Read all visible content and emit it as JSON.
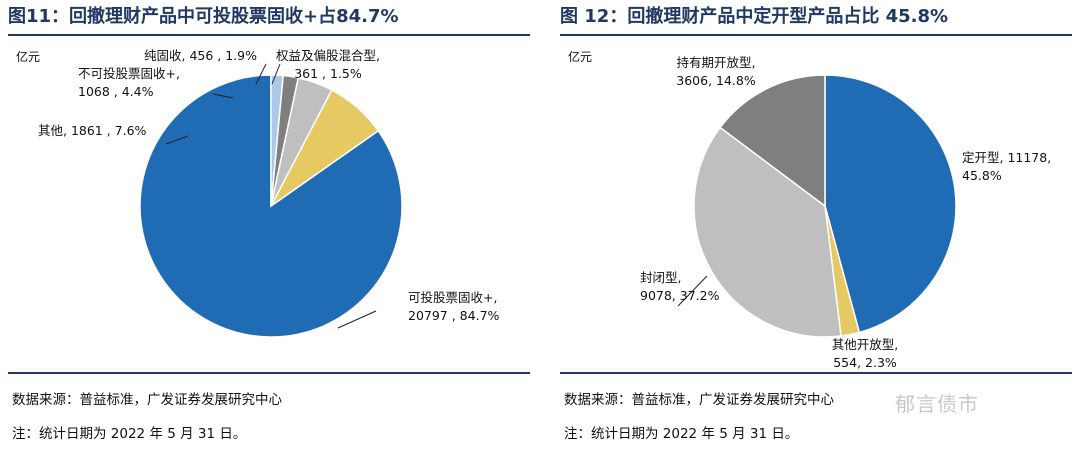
{
  "charts": [
    {
      "figure_title": "图11：回撤理财产品中可投股票固收+占84.7%",
      "unit": "亿元",
      "source": "数据来源：普益标准，广发证券发展研究中心",
      "note": "注：统计日期为 2022 年 5 月 31 日。"
    },
    {
      "figure_title": "图 12：回撤理财产品中定开型产品占比 45.8%",
      "unit": "亿元",
      "source": "数据来源：普益标准，广发证券发展研究中心",
      "note": "注：统计日期为 2022 年 5 月 31 日。"
    }
  ],
  "watermark": "郁言债市",
  "chart_data": [
    {
      "type": "pie",
      "title": "回撤理财产品中可投股票固收+占84.7%",
      "unit": "亿元",
      "slices": [
        {
          "name": "可投股票固收+",
          "value": 20797,
          "pct": "84.7%",
          "line1": "可投股票固收+,",
          "line2": "20797 , 84.7%",
          "color": "#1f6cb5"
        },
        {
          "name": "其他",
          "value": 1861,
          "pct": "7.6%",
          "line1": "其他, 1861 , 7.6%",
          "line2": "",
          "color": "#e6c962"
        },
        {
          "name": "不可投股票固收+",
          "value": 1068,
          "pct": "4.4%",
          "line1": "不可投股票固收+,",
          "line2": "1068 , 4.4%",
          "color": "#bfbfbf"
        },
        {
          "name": "纯固收",
          "value": 456,
          "pct": "1.9%",
          "line1": "纯固收, 456 , 1.9%",
          "line2": "",
          "color": "#7f7f7f"
        },
        {
          "name": "权益及偏股混合型",
          "value": 361,
          "pct": "1.5%",
          "line1": "权益及偏股混合型,",
          "line2": "361 , 1.5%",
          "color": "#a9c8ea"
        }
      ]
    },
    {
      "type": "pie",
      "title": "回撤理财产品中定开型产品占比 45.8%",
      "unit": "亿元",
      "slices": [
        {
          "name": "定开型",
          "value": 11178,
          "pct": "45.8%",
          "line1": "定开型, 11178,",
          "line2": "45.8%",
          "color": "#1f6cb5"
        },
        {
          "name": "其他开放型",
          "value": 554,
          "pct": "2.3%",
          "line1": "其他开放型,",
          "line2": "554, 2.3%",
          "color": "#e6c962"
        },
        {
          "name": "封闭型",
          "value": 9078,
          "pct": "37.2%",
          "line1": "封闭型,",
          "line2": "9078, 37.2%",
          "color": "#bfbfbf"
        },
        {
          "name": "持有期开放型",
          "value": 3606,
          "pct": "14.8%",
          "line1": "持有期开放型,",
          "line2": "3606, 14.8%",
          "color": "#7f7f7f"
        }
      ]
    }
  ]
}
